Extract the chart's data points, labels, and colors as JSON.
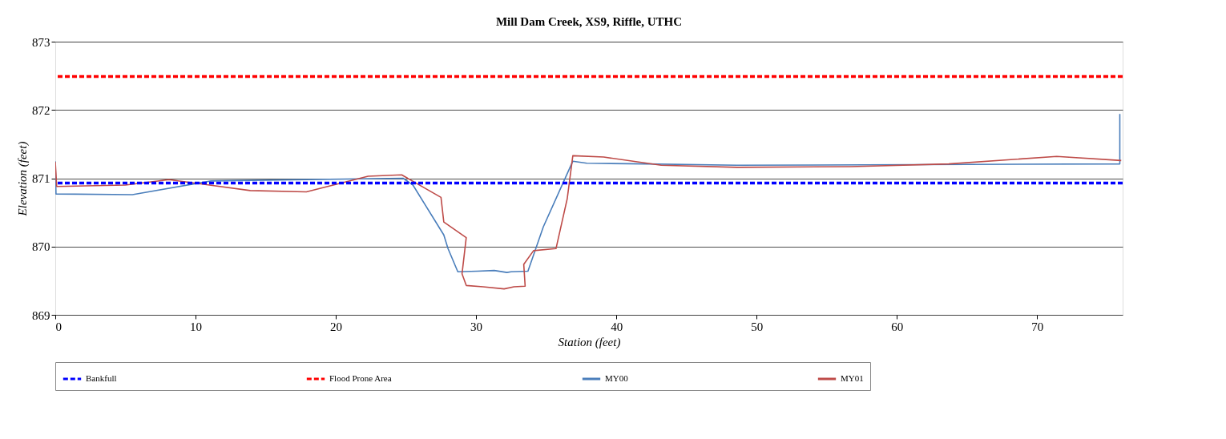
{
  "chart_data": {
    "type": "line",
    "title": "Mill Dam Creek, XS9, Riffle, UTHC",
    "xlabel": "Station (feet)",
    "ylabel": "Elevation (feet)",
    "xlim": [
      0,
      76.1
    ],
    "xticks": [
      0,
      10,
      20,
      30,
      40,
      50,
      60,
      70
    ],
    "ylim": [
      869,
      873
    ],
    "yticks": [
      869,
      870,
      871,
      872,
      873
    ],
    "grid": "y",
    "legend": "bottom",
    "line_style": "solid",
    "marker": "none",
    "ref_lines": [
      {
        "axis": "y",
        "value": 870.93,
        "label": "Bankfull",
        "color": "#0000ff",
        "line_style": "dashed"
      },
      {
        "axis": "y",
        "value": 872.49,
        "label": "Flood Prone Area",
        "color": "#ff0000",
        "line_style": "dashed"
      }
    ],
    "series": [
      {
        "name": "MY00",
        "color": "#4a7ebb",
        "x": [
          0,
          0.05,
          5.5,
          11.1,
          24.8,
          25.5,
          27.7,
          28.0,
          28.7,
          30.1,
          31.3,
          32.2,
          32.5,
          33.7,
          34.8,
          36.9,
          37.9,
          42.1,
          48.6,
          75.9,
          75.9
        ],
        "values": [
          871.25,
          870.77,
          870.76,
          870.96,
          871.0,
          870.9,
          870.17,
          869.97,
          869.63,
          869.64,
          869.65,
          869.62,
          869.63,
          869.64,
          870.29,
          871.25,
          871.22,
          871.21,
          871.19,
          871.21,
          871.94
        ]
      },
      {
        "name": "MY01",
        "color": "#be4b48",
        "x": [
          0,
          0.1,
          5.0,
          8.1,
          13.9,
          17.9,
          22.3,
          24.7,
          27.5,
          27.7,
          29.3,
          29.0,
          29.3,
          30.5,
          32.0,
          32.7,
          33.5,
          33.4,
          34.1,
          35.7,
          36.5,
          36.9,
          39.1,
          43.2,
          48.6,
          56.7,
          63.7,
          71.4,
          76.0
        ],
        "values": [
          871.24,
          870.88,
          870.9,
          870.98,
          870.82,
          870.8,
          871.03,
          871.05,
          870.72,
          870.36,
          870.13,
          869.6,
          869.43,
          869.41,
          869.38,
          869.41,
          869.42,
          869.74,
          869.94,
          869.97,
          870.7,
          871.33,
          871.31,
          871.19,
          871.16,
          871.17,
          871.21,
          871.32,
          871.26
        ]
      }
    ]
  }
}
